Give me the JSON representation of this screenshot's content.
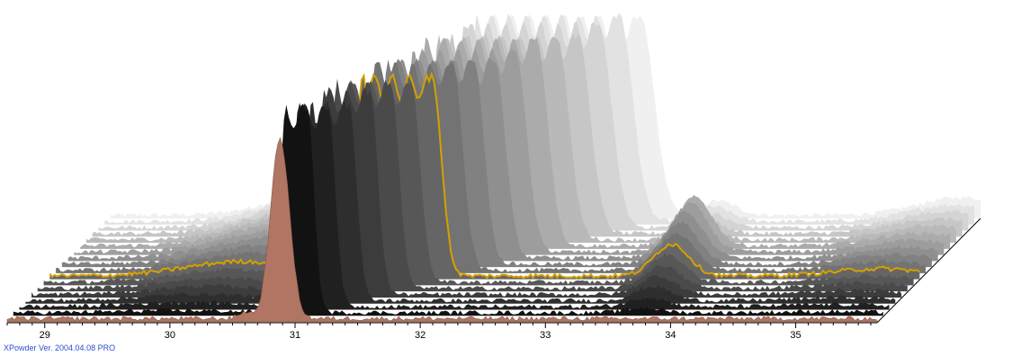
{
  "footer": {
    "version_text": "XPowder Ver. 2004.04.08 PRO"
  },
  "colors": {
    "front_trace": "#b07563",
    "highlight_trace": "#d4a000",
    "axis": "#000000",
    "version_text": "#2a4fd1"
  },
  "chart_data": {
    "type": "area",
    "style": "3d-waterfall stack of powder diffraction patterns, front pattern filled salmon, one pattern highlighted in yellow, back patterns in grayscale",
    "x_axis": {
      "ticks": [
        29,
        30,
        31,
        32,
        33,
        34,
        35
      ],
      "range": [
        28.7,
        35.65
      ],
      "minor_step": 0.1
    },
    "y_axis": {
      "range": [
        0,
        1
      ]
    },
    "front_peaks": [
      {
        "center": 30.88,
        "width": 0.075,
        "height": 0.82
      },
      {
        "center": 30.6,
        "width": 0.05,
        "height": 0.03
      }
    ],
    "layers": {
      "count": 18
    },
    "highlight_layer_index": 7
  }
}
